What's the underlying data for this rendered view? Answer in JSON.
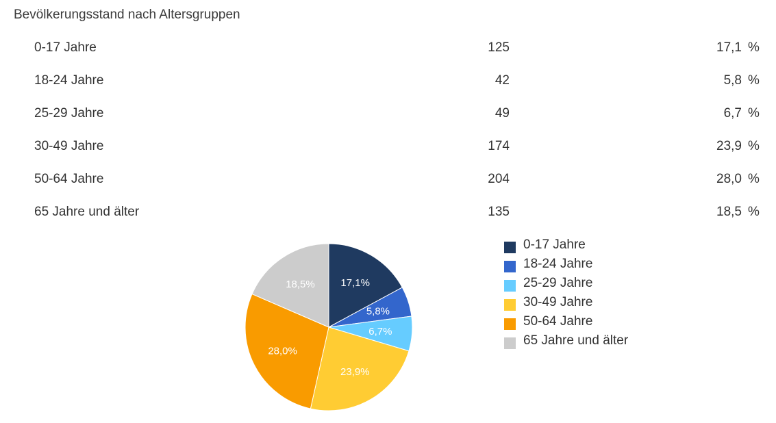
{
  "chart_data": {
    "type": "pie",
    "title": "Bevölkerungsstand nach Altersgruppen",
    "unit": "%",
    "categories": [
      "0-17 Jahre",
      "18-24 Jahre",
      "25-29 Jahre",
      "30-49 Jahre",
      "50-64 Jahre",
      "65 Jahre und älter"
    ],
    "counts": [
      "125",
      "42",
      "49",
      "174",
      "204",
      "135"
    ],
    "percents": [
      "17,1",
      "5,8",
      "6,7",
      "23,9",
      "28,0",
      "18,5"
    ],
    "slice_labels": [
      "17,1%",
      "5,8%",
      "6,7%",
      "23,9%",
      "28,0%",
      "18,5%"
    ],
    "values": [
      17.1,
      5.8,
      6.7,
      23.9,
      28.0,
      18.5
    ],
    "colors": [
      "#1f3a60",
      "#3366cc",
      "#66ccff",
      "#ffcc33",
      "#f99b00",
      "#cccccc"
    ],
    "legend_position": "right"
  }
}
